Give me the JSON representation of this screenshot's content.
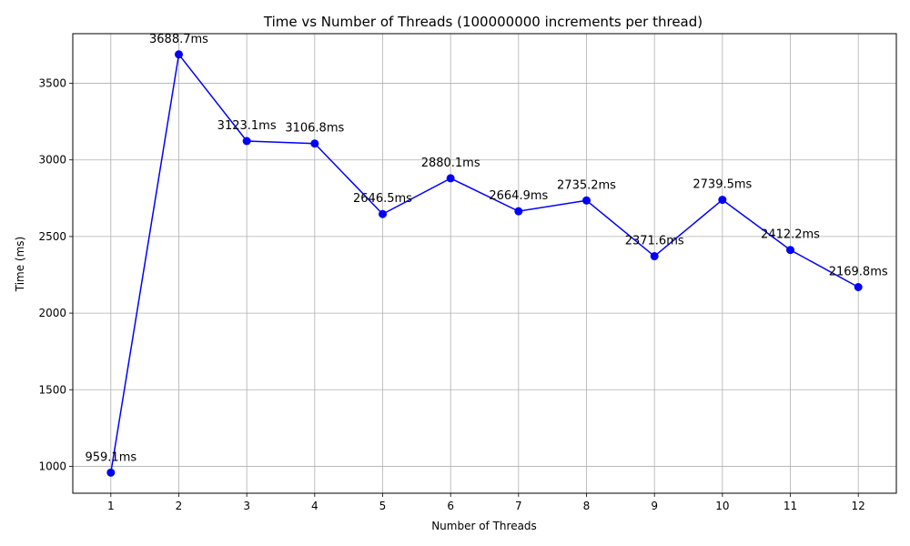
{
  "chart_data": {
    "type": "line",
    "title": "Time vs Number of Threads (100000000 increments per thread)",
    "xlabel": "Number of Threads",
    "ylabel": "Time (ms)",
    "x": [
      1,
      2,
      3,
      4,
      5,
      6,
      7,
      8,
      9,
      10,
      11,
      12
    ],
    "xticks": [
      "1",
      "2",
      "3",
      "4",
      "5",
      "6",
      "7",
      "8",
      "9",
      "10",
      "11",
      "12"
    ],
    "yticks": [
      "1000",
      "1500",
      "2000",
      "2500",
      "3000",
      "3500"
    ],
    "ytick_values": [
      1000,
      1500,
      2000,
      2500,
      3000,
      3500
    ],
    "xlim": [
      0.44,
      12.56
    ],
    "ylim": [
      824.5,
      3824
    ],
    "grid": true,
    "series": [
      {
        "values": [
          959.1,
          3688.7,
          3123.1,
          3106.8,
          2646.5,
          2880.1,
          2664.9,
          2735.2,
          2371.6,
          2739.5,
          2412.2,
          2169.8
        ],
        "labels": [
          "959.1ms",
          "3688.7ms",
          "3123.1ms",
          "3106.8ms",
          "2646.5ms",
          "2880.1ms",
          "2664.9ms",
          "2735.2ms",
          "2371.6ms",
          "2739.5ms",
          "2412.2ms",
          "2169.8ms"
        ],
        "color": "#0000ff",
        "marker": "circle"
      }
    ],
    "colors": {
      "grid": "#b0b0b0",
      "axes": "#000000"
    }
  }
}
